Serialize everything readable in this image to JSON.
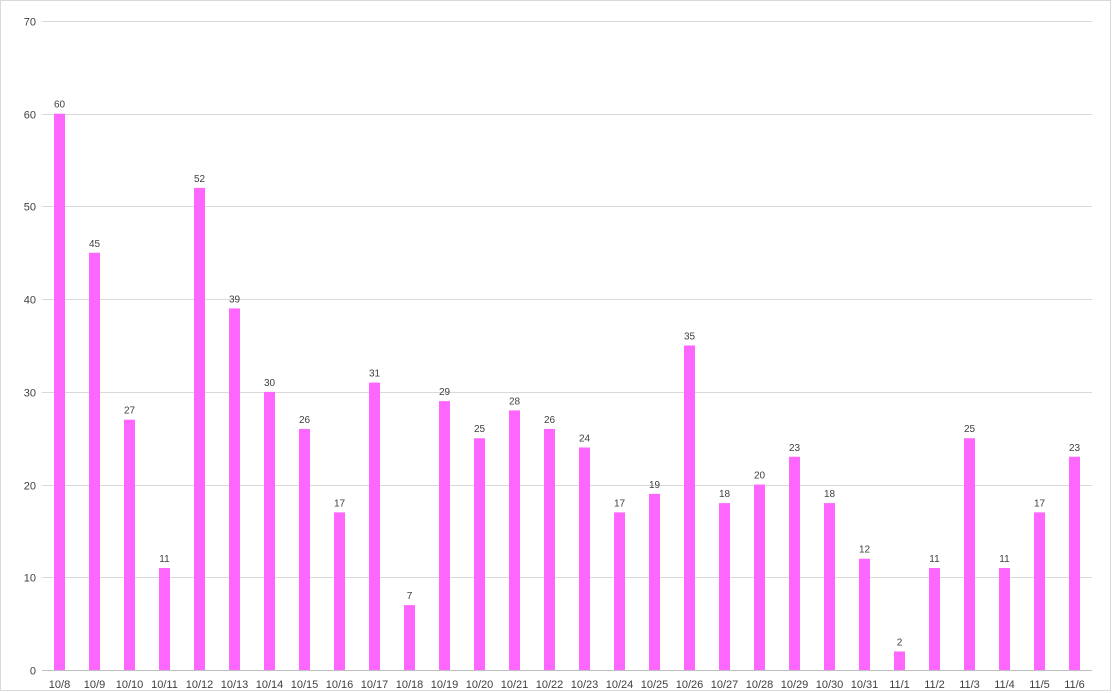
{
  "chart_data": {
    "type": "bar",
    "title": "",
    "xlabel": "",
    "ylabel": "",
    "ylim": [
      0,
      70
    ],
    "yticks": [
      0,
      10,
      20,
      30,
      40,
      50,
      60,
      70
    ],
    "grid": true,
    "legend": "none",
    "bar_color": "#ff66ff",
    "categories": [
      "10/8",
      "10/9",
      "10/10",
      "10/11",
      "10/12",
      "10/13",
      "10/14",
      "10/15",
      "10/16",
      "10/17",
      "10/18",
      "10/19",
      "10/20",
      "10/21",
      "10/22",
      "10/23",
      "10/24",
      "10/25",
      "10/26",
      "10/27",
      "10/28",
      "10/29",
      "10/30",
      "10/31",
      "11/1",
      "11/2",
      "11/3",
      "11/4",
      "11/5",
      "11/6"
    ],
    "values": [
      60,
      45,
      27,
      11,
      52,
      39,
      30,
      26,
      17,
      31,
      7,
      29,
      25,
      28,
      26,
      24,
      17,
      19,
      35,
      18,
      20,
      23,
      18,
      12,
      2,
      11,
      25,
      11,
      17,
      23
    ]
  }
}
